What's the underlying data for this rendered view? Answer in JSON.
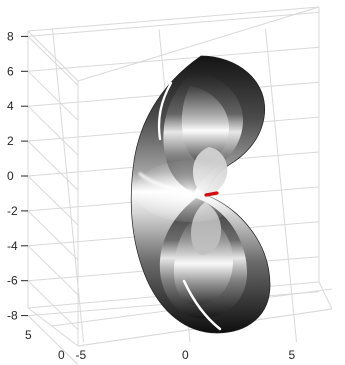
{
  "chart_data": {
    "type": "surface",
    "title": "",
    "xlabel": "",
    "ylabel": "",
    "zlabel": "",
    "axes": {
      "x": {
        "range": [
          -8,
          8
        ],
        "ticks": [
          -5,
          0,
          5
        ],
        "tick_labels": [
          "-5",
          "0",
          "5"
        ]
      },
      "y": {
        "range": [
          0,
          8
        ],
        "ticks": [
          0,
          5
        ],
        "tick_labels": [
          "0",
          "5"
        ]
      },
      "z": {
        "range": [
          -8,
          8
        ],
        "ticks": [
          8,
          6,
          4,
          2,
          0,
          -2,
          -4,
          -6,
          -8
        ],
        "tick_labels": [
          "8",
          "6",
          "4",
          "2",
          "0",
          "-2",
          "-4",
          "-6",
          "-8"
        ]
      }
    },
    "grid": true,
    "box": "3D axes box with gridlines",
    "colormap": "gray",
    "surface": {
      "shape": "nested closed tube surfaces resembling a vertically oriented cardioid/lemniscate-like body",
      "upper_lobe": "broad curved rounded surface above center",
      "lower_lobe": "broad curved rounded surface below center",
      "highlight": "bright white region near z = -1 to 0"
    },
    "marker": {
      "color": "#d01010",
      "description": "short red segment near center"
    },
    "colors": {
      "axis": "#262626",
      "grid": "#d9d9d9",
      "marker": "#d01010",
      "background": "#ffffff"
    }
  }
}
